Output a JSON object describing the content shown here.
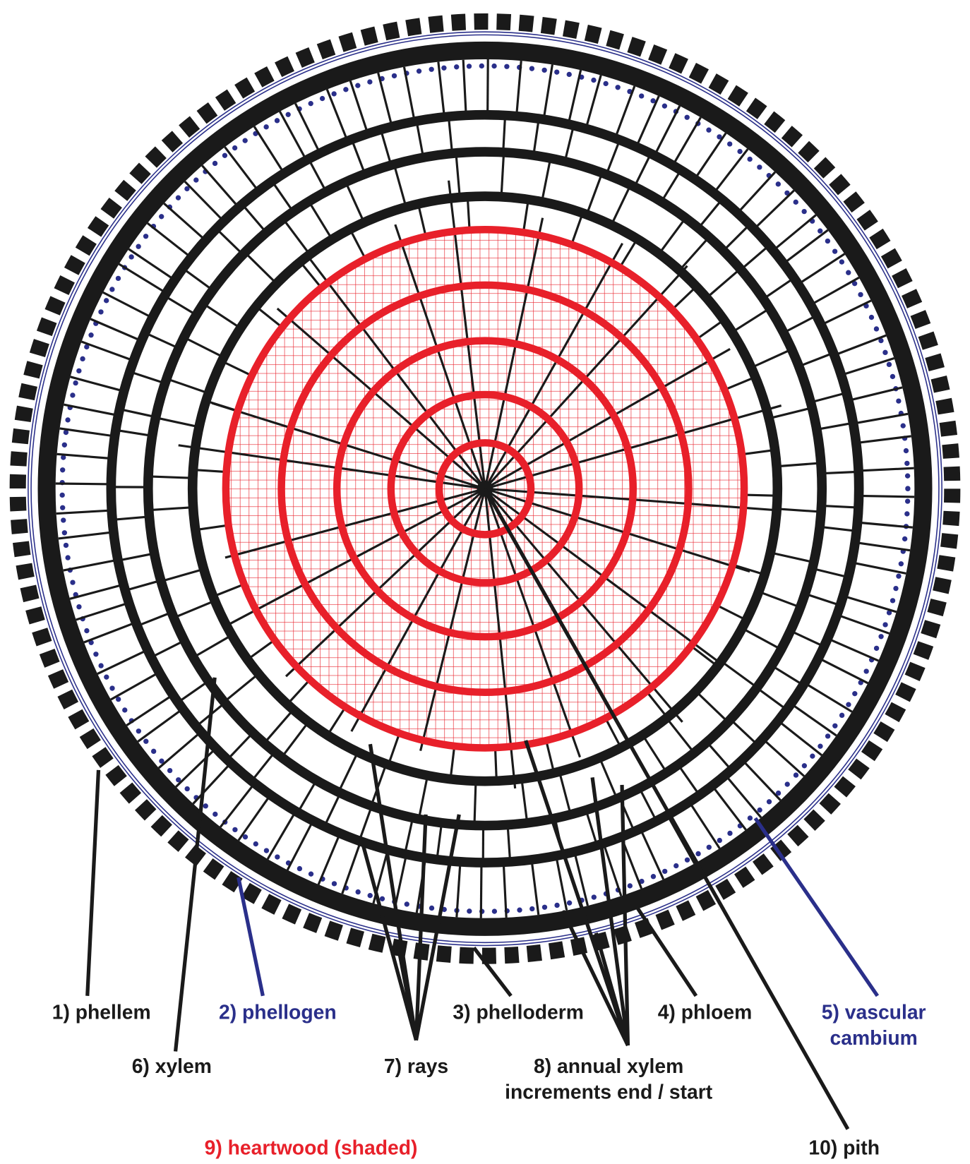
{
  "labels": [
    {
      "lines": [
        "1) phellem"
      ],
      "color": "#1a1a1a"
    },
    {
      "lines": [
        "2) phellogen"
      ],
      "color": "#2a2f8a"
    },
    {
      "lines": [
        "3) phelloderm"
      ],
      "color": "#1a1a1a"
    },
    {
      "lines": [
        "4) phloem"
      ],
      "color": "#1a1a1a"
    },
    {
      "lines": [
        "5) vascular",
        "cambium"
      ],
      "color": "#2a2f8a"
    },
    {
      "lines": [
        "6) xylem"
      ],
      "color": "#1a1a1a"
    },
    {
      "lines": [
        "7) rays"
      ],
      "color": "#1a1a1a"
    },
    {
      "lines": [
        "8) annual xylem",
        "increments end / start"
      ],
      "color": "#1a1a1a"
    },
    {
      "lines": [
        "9) heartwood (shaded)"
      ],
      "color": "#e8202a"
    },
    {
      "lines": [
        "10) pith"
      ],
      "color": "#1a1a1a"
    }
  ]
}
